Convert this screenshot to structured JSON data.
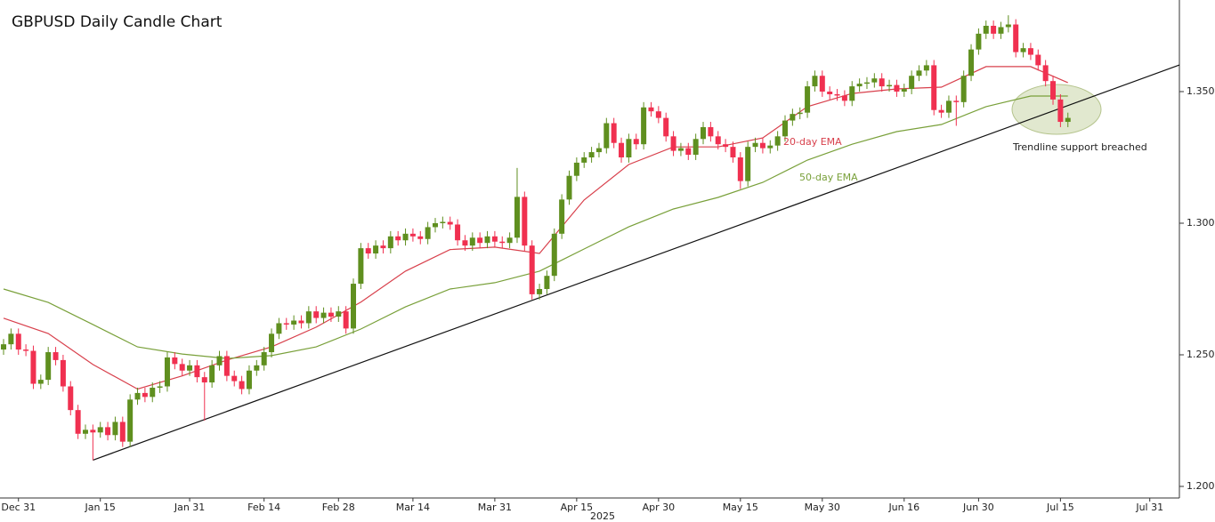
{
  "chart_data": {
    "type": "candlestick",
    "title": "GBPUSD Daily Candle Chart",
    "x_axis_label": "2025",
    "up_color": "#5f8f1f",
    "down_color": "#f03050",
    "xlim": [
      -0.48,
      157.98
    ],
    "ylim": [
      1.1956,
      1.3848
    ],
    "yticks": [
      {
        "value": 1.2,
        "label": "1.2000"
      },
      {
        "value": 1.25,
        "label": "1.2500"
      },
      {
        "value": 1.3,
        "label": "1.3000"
      },
      {
        "value": 1.35,
        "label": "1.3500"
      }
    ],
    "xticks": [
      {
        "value": 2,
        "label": "Dec 31"
      },
      {
        "value": 13,
        "label": "Jan 15"
      },
      {
        "value": 25,
        "label": "Jan 31"
      },
      {
        "value": 35,
        "label": "Feb 14"
      },
      {
        "value": 45,
        "label": "Feb 28"
      },
      {
        "value": 55,
        "label": "Mar 14"
      },
      {
        "value": 66,
        "label": "Mar 31"
      },
      {
        "value": 77,
        "label": "Apr 15"
      },
      {
        "value": 88,
        "label": "Apr 30"
      },
      {
        "value": 99,
        "label": "May 15"
      },
      {
        "value": 110,
        "label": "May 30"
      },
      {
        "value": 121,
        "label": "Jun 16"
      },
      {
        "value": 131,
        "label": "Jun 30"
      },
      {
        "value": 142,
        "label": "Jul 15"
      },
      {
        "value": 154,
        "label": "Jul 31"
      }
    ],
    "open": [
      1.252,
      1.254,
      1.258,
      1.252,
      1.2515,
      1.239,
      1.2405,
      1.251,
      1.248,
      1.238,
      1.229,
      1.22,
      1.2215,
      1.2205,
      1.2225,
      1.2195,
      1.2245,
      1.217,
      1.233,
      1.2355,
      1.234,
      1.2375,
      1.238,
      1.249,
      1.2465,
      1.244,
      1.246,
      1.2415,
      1.2395,
      1.246,
      1.2495,
      1.242,
      1.24,
      1.237,
      1.244,
      1.246,
      1.251,
      1.258,
      1.262,
      1.2615,
      1.263,
      1.262,
      1.2665,
      1.264,
      1.266,
      1.2645,
      1.2665,
      1.26,
      1.277,
      1.2905,
      1.2885,
      1.2915,
      1.2905,
      1.295,
      1.2935,
      1.296,
      1.295,
      1.294,
      1.2985,
      1.3,
      1.3005,
      1.2995,
      1.2935,
      1.2915,
      1.2945,
      1.2925,
      1.295,
      1.293,
      1.2925,
      1.2945,
      1.31,
      1.2915,
      1.273,
      1.275,
      1.28,
      1.296,
      1.309,
      1.318,
      1.323,
      1.325,
      1.327,
      1.3285,
      1.338,
      1.3305,
      1.325,
      1.332,
      1.33,
      1.344,
      1.3425,
      1.34,
      1.333,
      1.3275,
      1.3285,
      1.326,
      1.332,
      1.3365,
      1.333,
      1.33,
      1.329,
      1.325,
      1.316,
      1.329,
      1.3305,
      1.3285,
      1.3295,
      1.333,
      1.339,
      1.3415,
      1.342,
      1.352,
      1.356,
      1.35,
      1.349,
      1.3485,
      1.3465,
      1.352,
      1.353,
      1.3535,
      1.355,
      1.352,
      1.3525,
      1.35,
      1.351,
      1.356,
      1.358,
      1.36,
      1.343,
      1.342,
      1.3465,
      1.346,
      1.356,
      1.366,
      1.372,
      1.375,
      1.372,
      1.3745,
      1.3755,
      1.365,
      1.3665,
      1.364,
      1.36,
      1.354,
      1.347,
      1.3385
    ],
    "high": [
      1.256,
      1.26,
      1.26,
      1.254,
      1.2535,
      1.2425,
      1.253,
      1.253,
      1.25,
      1.24,
      1.231,
      1.2235,
      1.2235,
      1.2245,
      1.2245,
      1.2265,
      1.2265,
      1.235,
      1.2375,
      1.2375,
      1.2395,
      1.24,
      1.251,
      1.251,
      1.2485,
      1.248,
      1.248,
      1.2435,
      1.248,
      1.2515,
      1.2515,
      1.244,
      1.242,
      1.246,
      1.248,
      1.253,
      1.26,
      1.264,
      1.264,
      1.265,
      1.265,
      1.2685,
      1.2685,
      1.268,
      1.268,
      1.2685,
      1.2685,
      1.279,
      1.2925,
      1.2925,
      1.2935,
      1.2935,
      1.297,
      1.297,
      1.298,
      1.298,
      1.297,
      1.3005,
      1.302,
      1.3025,
      1.3025,
      1.3015,
      1.2955,
      1.2965,
      1.2965,
      1.297,
      1.297,
      1.295,
      1.2965,
      1.321,
      1.312,
      1.2935,
      1.277,
      1.282,
      1.298,
      1.311,
      1.32,
      1.325,
      1.327,
      1.329,
      1.3305,
      1.34,
      1.34,
      1.3325,
      1.334,
      1.334,
      1.346,
      1.346,
      1.3445,
      1.342,
      1.335,
      1.3305,
      1.3305,
      1.334,
      1.3385,
      1.3385,
      1.335,
      1.332,
      1.331,
      1.327,
      1.331,
      1.3325,
      1.3325,
      1.3315,
      1.335,
      1.341,
      1.3435,
      1.344,
      1.354,
      1.358,
      1.358,
      1.352,
      1.351,
      1.3505,
      1.354,
      1.355,
      1.3555,
      1.357,
      1.357,
      1.3545,
      1.3545,
      1.353,
      1.358,
      1.36,
      1.362,
      1.362,
      1.345,
      1.3485,
      1.3485,
      1.358,
      1.368,
      1.374,
      1.377,
      1.377,
      1.3765,
      1.379,
      1.3775,
      1.3685,
      1.3685,
      1.366,
      1.362,
      1.356,
      1.349,
      1.342
    ],
    "low": [
      1.25,
      1.252,
      1.25,
      1.2495,
      1.237,
      1.237,
      1.2385,
      1.246,
      1.236,
      1.227,
      1.218,
      1.218,
      1.21,
      1.2185,
      1.2175,
      1.2175,
      1.215,
      1.215,
      1.231,
      1.232,
      1.232,
      1.2355,
      1.236,
      1.2445,
      1.242,
      1.242,
      1.2395,
      1.225,
      1.2375,
      1.244,
      1.24,
      1.238,
      1.235,
      1.235,
      1.242,
      1.244,
      1.249,
      1.256,
      1.2595,
      1.2595,
      1.26,
      1.26,
      1.262,
      1.262,
      1.2625,
      1.2625,
      1.258,
      1.258,
      1.275,
      1.2865,
      1.2865,
      1.2885,
      1.2885,
      1.2915,
      1.2915,
      1.293,
      1.292,
      1.292,
      1.2965,
      1.298,
      1.2975,
      1.2915,
      1.2895,
      1.2895,
      1.2905,
      1.2905,
      1.291,
      1.2905,
      1.2905,
      1.2925,
      1.2895,
      1.271,
      1.271,
      1.273,
      1.278,
      1.294,
      1.307,
      1.316,
      1.321,
      1.323,
      1.325,
      1.3265,
      1.3285,
      1.323,
      1.323,
      1.328,
      1.328,
      1.3405,
      1.338,
      1.331,
      1.3255,
      1.3255,
      1.324,
      1.324,
      1.33,
      1.331,
      1.328,
      1.327,
      1.323,
      1.313,
      1.314,
      1.327,
      1.3265,
      1.3265,
      1.3275,
      1.331,
      1.337,
      1.3395,
      1.34,
      1.35,
      1.348,
      1.347,
      1.3465,
      1.3445,
      1.3445,
      1.35,
      1.351,
      1.3515,
      1.35,
      1.35,
      1.348,
      1.348,
      1.349,
      1.354,
      1.356,
      1.341,
      1.34,
      1.34,
      1.337,
      1.344,
      1.354,
      1.364,
      1.37,
      1.37,
      1.37,
      1.3725,
      1.363,
      1.363,
      1.362,
      1.358,
      1.352,
      1.345,
      1.3365,
      1.3365
    ],
    "close": [
      1.254,
      1.258,
      1.252,
      1.2515,
      1.239,
      1.2405,
      1.251,
      1.248,
      1.238,
      1.229,
      1.22,
      1.2215,
      1.2205,
      1.2225,
      1.2195,
      1.2245,
      1.217,
      1.233,
      1.2355,
      1.234,
      1.2375,
      1.238,
      1.249,
      1.2465,
      1.244,
      1.246,
      1.2415,
      1.2395,
      1.246,
      1.2495,
      1.242,
      1.24,
      1.237,
      1.244,
      1.246,
      1.251,
      1.258,
      1.262,
      1.2615,
      1.263,
      1.262,
      1.2665,
      1.264,
      1.266,
      1.2645,
      1.2665,
      1.26,
      1.277,
      1.2905,
      1.2885,
      1.2915,
      1.2905,
      1.295,
      1.2935,
      1.296,
      1.295,
      1.294,
      1.2985,
      1.3,
      1.3005,
      1.2995,
      1.2935,
      1.2915,
      1.2945,
      1.2925,
      1.295,
      1.293,
      1.2925,
      1.2945,
      1.31,
      1.2915,
      1.273,
      1.275,
      1.28,
      1.296,
      1.309,
      1.318,
      1.323,
      1.325,
      1.327,
      1.3285,
      1.338,
      1.3305,
      1.325,
      1.332,
      1.33,
      1.344,
      1.3425,
      1.34,
      1.333,
      1.3275,
      1.3285,
      1.326,
      1.332,
      1.3365,
      1.333,
      1.33,
      1.329,
      1.325,
      1.316,
      1.329,
      1.3305,
      1.3285,
      1.3295,
      1.333,
      1.339,
      1.3415,
      1.342,
      1.352,
      1.356,
      1.35,
      1.349,
      1.3485,
      1.3465,
      1.352,
      1.353,
      1.3535,
      1.355,
      1.352,
      1.3525,
      1.35,
      1.351,
      1.356,
      1.358,
      1.36,
      1.343,
      1.342,
      1.3465,
      1.346,
      1.356,
      1.366,
      1.372,
      1.375,
      1.372,
      1.3745,
      1.3755,
      1.365,
      1.3665,
      1.364,
      1.36,
      1.354,
      1.347,
      1.3385,
      1.34
    ],
    "series": [
      {
        "name": "20-day EMA",
        "color": "#d8404c",
        "x": [
          0,
          6,
          12,
          18,
          24,
          30,
          36,
          42,
          48,
          54,
          60,
          66,
          72,
          78,
          84,
          90,
          96,
          102,
          108,
          114,
          120,
          126,
          132,
          138,
          143
        ],
        "values": [
          1.2639,
          1.2581,
          1.2463,
          1.237,
          1.242,
          1.248,
          1.253,
          1.2605,
          1.27,
          1.2818,
          1.29,
          1.2909,
          1.2885,
          1.3088,
          1.3223,
          1.329,
          1.329,
          1.3324,
          1.3443,
          1.3493,
          1.351,
          1.3517,
          1.3595,
          1.3595,
          1.3534
        ]
      },
      {
        "name": "50-day EMA",
        "color": "#79a03a",
        "x": [
          0,
          6,
          12,
          18,
          24,
          30,
          36,
          42,
          48,
          54,
          60,
          66,
          72,
          78,
          84,
          90,
          96,
          102,
          108,
          114,
          120,
          126,
          132,
          138,
          143
        ],
        "values": [
          1.275,
          1.2699,
          1.2615,
          1.253,
          1.2503,
          1.2486,
          1.2497,
          1.253,
          1.2598,
          1.2682,
          1.275,
          1.2774,
          1.2818,
          1.2902,
          1.2986,
          1.3054,
          1.3098,
          1.3155,
          1.324,
          1.33,
          1.3348,
          1.3375,
          1.3443,
          1.3483,
          1.3483
        ]
      }
    ],
    "trendline": {
      "x": [
        12,
        157.98
      ],
      "values": [
        1.21,
        1.3601
      ],
      "color": "#111111"
    },
    "annotations": [
      {
        "text": "Trendline support breached"
      }
    ]
  }
}
